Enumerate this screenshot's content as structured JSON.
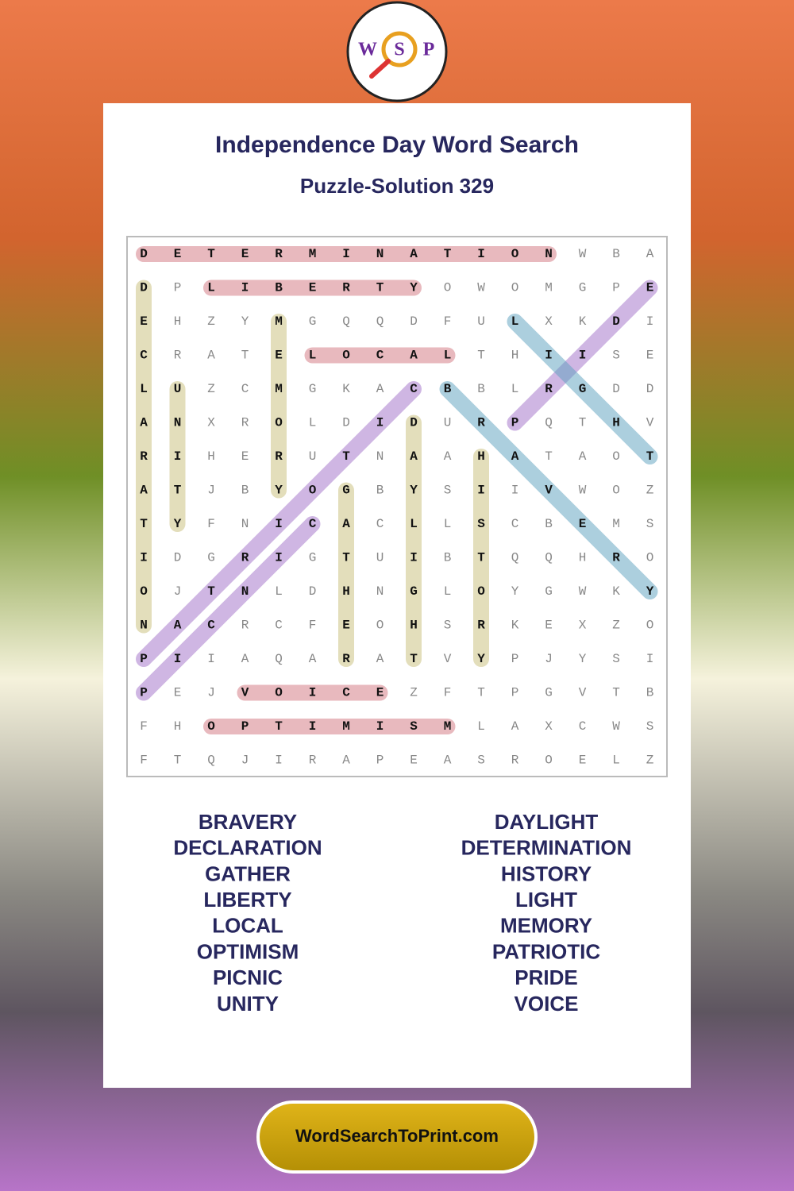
{
  "logo": {
    "letters": [
      "W",
      "S",
      "P"
    ]
  },
  "header": {
    "title": "Independence Day Word Search",
    "subtitle": "Puzzle-Solution 329"
  },
  "grid": {
    "rows": [
      [
        "D",
        "E",
        "T",
        "E",
        "R",
        "M",
        "I",
        "N",
        "A",
        "T",
        "I",
        "O",
        "N",
        "W",
        "B",
        "A"
      ],
      [
        "D",
        "P",
        "L",
        "I",
        "B",
        "E",
        "R",
        "T",
        "Y",
        "O",
        "W",
        "O",
        "M",
        "G",
        "P",
        "E"
      ],
      [
        "E",
        "H",
        "Z",
        "Y",
        "M",
        "G",
        "Q",
        "Q",
        "D",
        "F",
        "U",
        "L",
        "X",
        "K",
        "D",
        "I"
      ],
      [
        "C",
        "R",
        "A",
        "T",
        "E",
        "L",
        "O",
        "C",
        "A",
        "L",
        "T",
        "H",
        "I",
        "I",
        "S",
        "E"
      ],
      [
        "L",
        "U",
        "Z",
        "C",
        "M",
        "G",
        "K",
        "A",
        "C",
        "B",
        "B",
        "L",
        "R",
        "G",
        "D",
        "D"
      ],
      [
        "A",
        "N",
        "X",
        "R",
        "O",
        "L",
        "D",
        "I",
        "D",
        "U",
        "R",
        "P",
        "Q",
        "T",
        "H",
        "V"
      ],
      [
        "R",
        "I",
        "H",
        "E",
        "R",
        "U",
        "T",
        "N",
        "A",
        "A",
        "H",
        "A",
        "T",
        "A",
        "O",
        "T"
      ],
      [
        "A",
        "T",
        "J",
        "B",
        "Y",
        "O",
        "G",
        "B",
        "Y",
        "S",
        "I",
        "I",
        "V",
        "W",
        "O",
        "Z"
      ],
      [
        "T",
        "Y",
        "F",
        "N",
        "I",
        "C",
        "A",
        "C",
        "L",
        "L",
        "S",
        "C",
        "B",
        "E",
        "M",
        "S"
      ],
      [
        "I",
        "D",
        "G",
        "R",
        "I",
        "G",
        "T",
        "U",
        "I",
        "B",
        "T",
        "Q",
        "Q",
        "H",
        "R",
        "O"
      ],
      [
        "O",
        "J",
        "T",
        "N",
        "L",
        "D",
        "H",
        "N",
        "G",
        "L",
        "O",
        "Y",
        "G",
        "W",
        "K",
        "Y"
      ],
      [
        "N",
        "A",
        "C",
        "R",
        "C",
        "F",
        "E",
        "O",
        "H",
        "S",
        "R",
        "K",
        "E",
        "X",
        "Z",
        "O"
      ],
      [
        "P",
        "I",
        "I",
        "A",
        "Q",
        "A",
        "R",
        "A",
        "T",
        "V",
        "Y",
        "P",
        "J",
        "Y",
        "S",
        "I"
      ],
      [
        "P",
        "E",
        "J",
        "V",
        "O",
        "I",
        "C",
        "E",
        "Z",
        "F",
        "T",
        "P",
        "G",
        "V",
        "T",
        "B"
      ],
      [
        "F",
        "H",
        "O",
        "P",
        "T",
        "I",
        "M",
        "I",
        "S",
        "M",
        "L",
        "A",
        "X",
        "C",
        "W",
        "S"
      ],
      [
        "F",
        "T",
        "Q",
        "J",
        "I",
        "R",
        "A",
        "P",
        "E",
        "A",
        "S",
        "R",
        "O",
        "E",
        "L",
        "Z"
      ]
    ]
  },
  "words": {
    "left": [
      "BRAVERY",
      "DECLARATION",
      "GATHER",
      "LIBERTY",
      "LOCAL",
      "OPTIMISM",
      "PICNIC",
      "UNITY"
    ],
    "right": [
      "DAYLIGHT",
      "DETERMINATION",
      "HISTORY",
      "LIGHT",
      "MEMORY",
      "PATRIOTIC",
      "PRIDE",
      "VOICE"
    ]
  },
  "footer": {
    "site": "WordSearchToPrint.com"
  }
}
